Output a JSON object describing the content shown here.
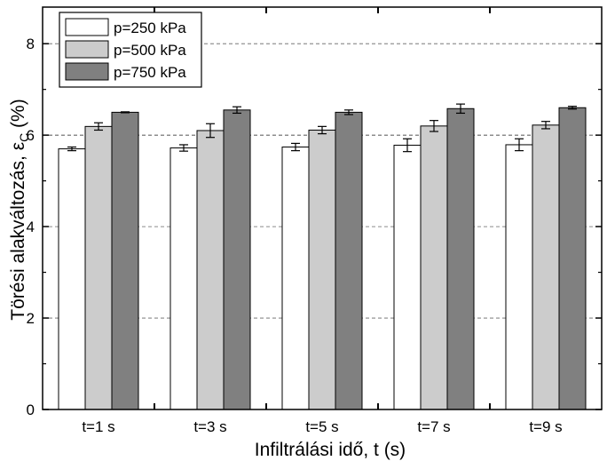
{
  "chart_data": {
    "type": "bar",
    "xlabel": "Infiltrálási idő, t (s)",
    "ylabel_main": "Törési alakváltozás, ε",
    "ylabel_sub": "C",
    "ylabel_unit": " (%)",
    "categories": [
      "t=1 s",
      "t=3 s",
      "t=5 s",
      "t=7 s",
      "t=9 s"
    ],
    "series": [
      {
        "name": "p=250 kPa",
        "color": "#ffffff",
        "values": [
          5.7,
          5.72,
          5.74,
          5.78,
          5.79
        ],
        "errors": [
          0.04,
          0.07,
          0.08,
          0.14,
          0.13
        ]
      },
      {
        "name": "p=500 kPa",
        "color": "#cccccc",
        "values": [
          6.19,
          6.1,
          6.11,
          6.2,
          6.22
        ],
        "errors": [
          0.08,
          0.15,
          0.08,
          0.12,
          0.08
        ]
      },
      {
        "name": "p=750 kPa",
        "color": "#808080",
        "values": [
          6.5,
          6.55,
          6.5,
          6.58,
          6.6
        ],
        "errors": [
          0.01,
          0.07,
          0.05,
          0.1,
          0.03
        ]
      }
    ],
    "ylim": [
      0,
      8.8
    ],
    "yticks": [
      0,
      2,
      4,
      6,
      8
    ],
    "ytick_labels": [
      "0",
      "2",
      "4",
      "6",
      "8"
    ],
    "grid": "dashed horizontal at major y ticks",
    "legend_placement": "top-left"
  }
}
